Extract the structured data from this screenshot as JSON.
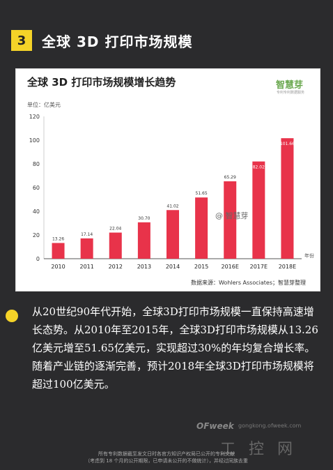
{
  "header": {
    "number": "3",
    "title": "全球 3D 打印市场规模"
  },
  "chart_card": {
    "logo": "智慧芽",
    "logo_sub": "专利专利数据服务",
    "source": "数据来源：Wohlers Associates；智慧芽整理",
    "watermark": "@ 智慧芽"
  },
  "chart_data": {
    "type": "bar",
    "title": "全球 3D 打印市场规模增长趋势",
    "ylabel": "单位：亿美元",
    "xlabel": "年份",
    "categories": [
      "2010",
      "2011",
      "2012",
      "2013",
      "2014",
      "2015",
      "2016E",
      "2017E",
      "2018E"
    ],
    "values": [
      13.26,
      17.14,
      22.04,
      30.7,
      41.02,
      51.65,
      65.29,
      82.02,
      101.66
    ],
    "value_labels": [
      "13.26",
      "17.14",
      "22.04",
      "30.70",
      "41.02",
      "51.65",
      "65.29",
      "82.02",
      "101.66"
    ],
    "ylim": [
      0,
      120
    ],
    "yticks": [
      0,
      20,
      40,
      60,
      80,
      100,
      120
    ],
    "grid": false,
    "bar_color": "#e8334a"
  },
  "body": {
    "paragraph": "从20世纪90年代开始，全球3D打印市场规模一直保持高速增长态势。从2010年至2015年，全球3D打印市场规模从13.26亿美元增至51.65亿美元，实现超过30%的年均复合增长率。随着产业链的逐渐完善，预计2018年全球3D打印市场规模将超过100亿美元。"
  },
  "footer": {
    "logo": "OFweek",
    "url": "gongkong.ofweek.com",
    "watermark": "工 控 网",
    "note_line1": "所有专利数据截至发文日时各官方知识产权局已公开的专利文献",
    "note_line2": "（考虑到 18 个月的公开期限，已申请未公开的不做统计），并经过同族去重"
  },
  "colors": {
    "accent_yellow": "#f5d328",
    "background": "#2b2b2d",
    "bar": "#e8334a",
    "logo_green": "#6aa84f"
  }
}
